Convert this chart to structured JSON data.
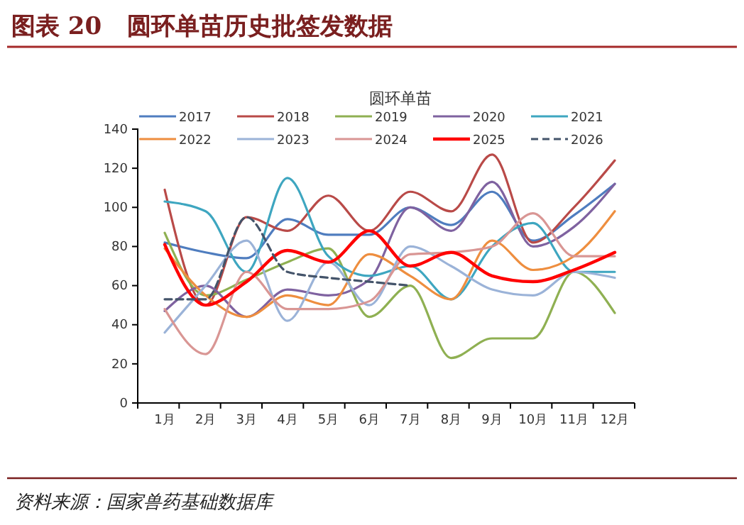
{
  "chart_data": {
    "type": "line",
    "title": "图表 20   圆环单苗历史批签发数据",
    "subtitle": "圆环单苗",
    "annotations": [
      "资料来源：国家兽药基础数据库"
    ],
    "categories": [
      "1月",
      "2月",
      "3月",
      "4月",
      "5月",
      "6月",
      "7月",
      "8月",
      "9月",
      "10月",
      "11月",
      "12月"
    ],
    "ylim": [
      0,
      140
    ],
    "yticks": [
      0,
      20,
      40,
      60,
      80,
      100,
      120,
      140
    ],
    "grid": false,
    "legend": "top",
    "marker": "none",
    "series": [
      {
        "name": "2017",
        "color": "#4f7dbf",
        "values": [
          82,
          77,
          74,
          94,
          86,
          86,
          100,
          91,
          108,
          83,
          96,
          112
        ]
      },
      {
        "name": "2018",
        "color": "#b94a48",
        "values": [
          109,
          50,
          95,
          88,
          106,
          88,
          108,
          98,
          127,
          82,
          100,
          124
        ]
      },
      {
        "name": "2019",
        "color": "#8fb052",
        "values": [
          87,
          55,
          63,
          72,
          79,
          44,
          60,
          23,
          33,
          33,
          67,
          46
        ]
      },
      {
        "name": "2020",
        "color": "#7f62a0",
        "values": [
          47,
          60,
          44,
          58,
          55,
          63,
          100,
          88,
          113,
          80,
          90,
          112
        ]
      },
      {
        "name": "2021",
        "color": "#3ea6c0",
        "values": [
          103,
          98,
          67,
          115,
          75,
          65,
          70,
          53,
          80,
          92,
          67,
          67
        ]
      },
      {
        "name": "2022",
        "color": "#ee8e3f",
        "values": [
          79,
          55,
          44,
          55,
          50,
          76,
          65,
          53,
          83,
          68,
          75,
          98
        ]
      },
      {
        "name": "2023",
        "color": "#9bb3d8",
        "values": [
          36,
          60,
          83,
          42,
          72,
          50,
          80,
          70,
          58,
          55,
          67,
          64
        ]
      },
      {
        "name": "2024",
        "color": "#d99694",
        "values": [
          48,
          25,
          67,
          48,
          48,
          52,
          76,
          77,
          80,
          97,
          75,
          75
        ]
      },
      {
        "name": "2025",
        "color": "#ff0000",
        "values": [
          81,
          50,
          62,
          78,
          72,
          88,
          70,
          77,
          65,
          62,
          68,
          77
        ]
      },
      {
        "name": "2026",
        "color": "#44546a",
        "line_style": "dashed",
        "values": [
          53,
          53,
          95,
          67,
          64,
          62,
          60,
          null,
          null,
          null,
          null,
          null
        ]
      }
    ]
  }
}
